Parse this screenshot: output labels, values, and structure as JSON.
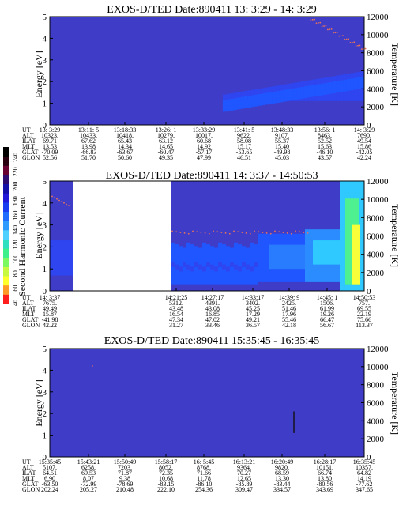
{
  "colorbar": {
    "label": "Second Harmonic Current",
    "ticks": [
      "40",
      "60",
      "80",
      "100",
      "120",
      "140",
      "160",
      "180",
      "200",
      "220",
      "240"
    ],
    "colors": [
      "#000000",
      "#2a0010",
      "#6a0030",
      "#2d0b6f",
      "#1410a8",
      "#2218d8",
      "#1a3cf0",
      "#1f6cff",
      "#2f9bff",
      "#4fd0ff",
      "#2fe0c0",
      "#3df08a",
      "#7cf860",
      "#c8f840",
      "#ffff2e",
      "#ff9a28",
      "#ff1e1e"
    ]
  },
  "colors": {
    "background_blue": "#3f3cc8",
    "mid_blue": "#2f45f0",
    "bright_blue": "#1f56ff",
    "cyan": "#2fc8ff",
    "green": "#4ff08f",
    "yellow": "#f8ff38",
    "dot_red": "#e8735a",
    "dark_line": "#101010"
  },
  "chart_data": [
    {
      "type": "heatmap",
      "title": "EXOS-D/TED   Date:890411  13: 3:29 - 14: 3:29",
      "ylabel": "Energy [eV]",
      "ylabel_right": "Temperature [K]",
      "ylim": [
        0,
        5
      ],
      "yticks": [
        "0",
        "1",
        "2",
        "3",
        "4",
        "5"
      ],
      "ylim_right": [
        0,
        12000
      ],
      "yticks_right": [
        "0",
        "2000",
        "4000",
        "6000",
        "8000",
        "10000",
        "12000"
      ],
      "ephemeris_labels": [
        "UT",
        "ALT",
        "ILAT",
        "MLT",
        "GLAT",
        "GLON"
      ],
      "ephemeris": [
        [
          "13: 3:29",
          "10323.",
          "69.71",
          "13.53",
          "-70.09",
          "52.56"
        ],
        [
          "13:11: 5",
          "10433.",
          "67.62",
          "13.98",
          "-66.83",
          "51.70"
        ],
        [
          "13:18:33",
          "10418.",
          "65.43",
          "14.34",
          "-63.67",
          "50.60"
        ],
        [
          "13:26: 1",
          "10279.",
          "63.12",
          "14.65",
          "-60.47",
          "49.35"
        ],
        [
          "13:33:29",
          "10017.",
          "60.68",
          "14.92",
          "-57.17",
          "47.99"
        ],
        [
          "13:41: 5",
          "9622.",
          "58.08",
          "15.17",
          "-53.65",
          "46.51"
        ],
        [
          "13:48:33",
          "9107.",
          "55.37",
          "15.40",
          "-49.98",
          "45.03"
        ],
        [
          "13:56: 1",
          "8463.",
          "52.52",
          "15.63",
          "-46.10",
          "43.57"
        ],
        [
          "14: 3:29",
          "7690.",
          "49.54",
          "15.86",
          "-42.05",
          "42.24"
        ]
      ]
    },
    {
      "type": "heatmap",
      "title": "EXOS-D/TED   Date:890411  14: 3:37 - 14:50:53",
      "ylabel": "Energy [eV]",
      "ylabel_right": "Temperature [K]",
      "ylim": [
        0,
        5
      ],
      "yticks": [
        "0",
        "1",
        "2",
        "3",
        "4",
        "5"
      ],
      "ylim_right": [
        0,
        12000
      ],
      "yticks_right": [
        "0",
        "2000",
        "4000",
        "6000",
        "8000",
        "10000",
        "12000"
      ],
      "ephemeris_labels": [
        "UT",
        "ALT",
        "ILAT",
        "MLT",
        "GLAT",
        "GLON"
      ],
      "ephemeris": [
        [
          "14: 3:37",
          "7675.",
          "49.49",
          "15.87",
          "-41.98",
          "42.22"
        ],
        [
          "14:21:25",
          "5312.",
          "43.48",
          "16.54",
          "47.34",
          "31.27"
        ],
        [
          "14:27:17",
          "4391.",
          "43.08",
          "16.85",
          "47.02",
          "33.46"
        ],
        [
          "14:33:17",
          "3402.",
          "45.25",
          "17.29",
          "49.21",
          "36.57"
        ],
        [
          "14:39: 9",
          "2425.",
          "51.46",
          "17.96",
          "55.46",
          "42.18"
        ],
        [
          "14:45: 1",
          "1506.",
          "61.99",
          "19.26",
          "66.47",
          "56.67"
        ],
        [
          "14:50:53",
          "757.",
          "69.55",
          "22.19",
          "75.66",
          "113.37"
        ]
      ]
    },
    {
      "type": "heatmap",
      "title": "EXOS-D/TED   Date:890411  15:35:45 - 16:35:45",
      "ylabel": "Energy [eV]",
      "ylabel_right": "Temperature [K]",
      "ylim": [
        0,
        5
      ],
      "yticks": [
        "0",
        "1",
        "2",
        "3",
        "4",
        "5"
      ],
      "ylim_right": [
        0,
        12000
      ],
      "yticks_right": [
        "0",
        "2000",
        "4000",
        "6000",
        "8000",
        "10000",
        "12000"
      ],
      "ephemeris_labels": [
        "UT",
        "ALT",
        "ILAT",
        "MLT",
        "GLAT",
        "GLON"
      ],
      "ephemeris": [
        [
          "15:35:45",
          "5107.",
          "64.51",
          "6.90",
          "-63.50",
          "202.24"
        ],
        [
          "15:43:21",
          "6258.",
          "69.53",
          "8.07",
          "-72.99",
          "205.27"
        ],
        [
          "15:50:49",
          "7203.",
          "71.87",
          "9.38",
          "-78.69",
          "210.48"
        ],
        [
          "15:58:17",
          "8052.",
          "72.35",
          "10.68",
          "-83.15",
          "222.10"
        ],
        [
          "16: 5:45",
          "8768.",
          "71.66",
          "11.78",
          "-86.10",
          "254.36"
        ],
        [
          "16:13:21",
          "9364.",
          "70.27",
          "12.65",
          "-85.89",
          "309.47"
        ],
        [
          "16:20:49",
          "9820.",
          "68.59",
          "13.30",
          "-83.44",
          "334.57"
        ],
        [
          "16:28:17",
          "10151.",
          "66.74",
          "13.80",
          "-80.56",
          "343.69"
        ],
        [
          "16:35:45",
          "10357.",
          "64.82",
          "14.19",
          "-77.62",
          "347.65"
        ]
      ]
    }
  ]
}
